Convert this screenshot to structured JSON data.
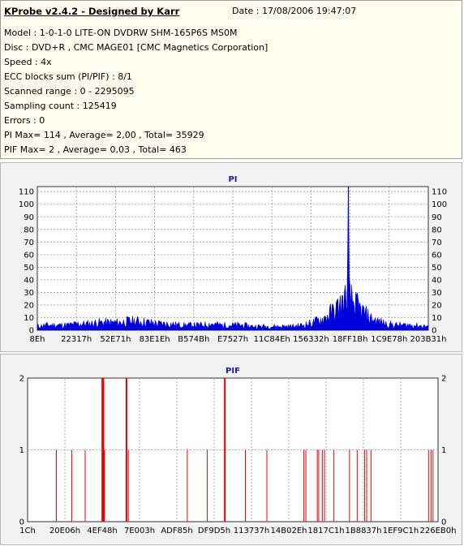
{
  "report": {
    "title": "KProbe v2.4.2 - Designed by Karr",
    "date": "Date : 17/08/2006 19:47:07",
    "lines": [
      "Model : 1-0-1-0 LITE-ON DVDRW SHM-165P6S MS0M",
      "Disc : DVD+R , CMC MAGE01 [CMC Magnetics Corporation]",
      "Speed : 4x",
      "ECC blocks sum (PI/PIF) : 8/1",
      "Scanned range : 0 - 2295095",
      "Sampling count : 125419",
      "Errors : 0",
      "PI Max= 114 , Average= 2,00 , Total= 35929",
      "PIF Max= 2 , Average= 0,03 , Total= 463"
    ]
  },
  "colors": {
    "pi": "#0000dd",
    "pif": "#ee0000",
    "grid": "#9a9a9a",
    "plot_bg": "#ffffff",
    "panel_bg": "#f2f2f2",
    "info_bg": "#fffff0"
  },
  "chart_data": [
    {
      "type": "area",
      "title": "PI",
      "xlabel": "",
      "ylabel": "",
      "ylim": [
        0,
        114
      ],
      "yticks": [
        0,
        10,
        20,
        30,
        40,
        50,
        60,
        70,
        80,
        90,
        100,
        110
      ],
      "xticks": [
        "8Eh",
        "22317h",
        "52E71h",
        "83E1Eh",
        "B574Bh",
        "E7527h",
        "11C84Eh",
        "156332h",
        "18FF1Bh",
        "1C9E78h",
        "203B31h"
      ],
      "xlim": [
        0,
        2295095
      ],
      "grid": true,
      "max_point": {
        "x": 1826000,
        "y": 114
      },
      "profile": [
        [
          0,
          3
        ],
        [
          60000,
          4
        ],
        [
          120000,
          4
        ],
        [
          180000,
          4
        ],
        [
          240000,
          5
        ],
        [
          300000,
          5
        ],
        [
          360000,
          6
        ],
        [
          420000,
          6
        ],
        [
          480000,
          6
        ],
        [
          540000,
          7
        ],
        [
          600000,
          7
        ],
        [
          660000,
          6
        ],
        [
          720000,
          5
        ],
        [
          780000,
          5
        ],
        [
          840000,
          4
        ],
        [
          900000,
          4
        ],
        [
          960000,
          4
        ],
        [
          1020000,
          5
        ],
        [
          1080000,
          4
        ],
        [
          1140000,
          4
        ],
        [
          1200000,
          4
        ],
        [
          1260000,
          3
        ],
        [
          1320000,
          3
        ],
        [
          1380000,
          3
        ],
        [
          1440000,
          3
        ],
        [
          1500000,
          3
        ],
        [
          1560000,
          4
        ],
        [
          1620000,
          6
        ],
        [
          1680000,
          9
        ],
        [
          1720000,
          13
        ],
        [
          1760000,
          17
        ],
        [
          1790000,
          21
        ],
        [
          1810000,
          24
        ],
        [
          1826000,
          26
        ],
        [
          1845000,
          23
        ],
        [
          1880000,
          18
        ],
        [
          1920000,
          13
        ],
        [
          1960000,
          9
        ],
        [
          2000000,
          7
        ],
        [
          2050000,
          5
        ],
        [
          2100000,
          4
        ],
        [
          2150000,
          4
        ],
        [
          2200000,
          4
        ],
        [
          2295095,
          3
        ]
      ]
    },
    {
      "type": "bar",
      "title": "PIF",
      "xlabel": "",
      "ylabel": "",
      "ylim": [
        0,
        2
      ],
      "yticks": [
        0,
        1,
        2
      ],
      "xticks": [
        "1Ch",
        "20E06h",
        "4EF48h",
        "7E003h",
        "ADF85h",
        "DF9D5h",
        "113737h",
        "14B02Eh",
        "1817C1h",
        "1B8837h",
        "1EF9C1h",
        "226EB0h"
      ],
      "xlim": [
        0,
        2295095
      ],
      "grid": true,
      "points": [
        [
          161000,
          1
        ],
        [
          247000,
          1
        ],
        [
          322000,
          1
        ],
        [
          418000,
          2
        ],
        [
          424000,
          2
        ],
        [
          430000,
          1
        ],
        [
          553000,
          2
        ],
        [
          563000,
          1
        ],
        [
          893000,
          1
        ],
        [
          1005000,
          1
        ],
        [
          1103000,
          2
        ],
        [
          1218000,
          1
        ],
        [
          1338000,
          1
        ],
        [
          1545000,
          1
        ],
        [
          1556000,
          1
        ],
        [
          1620000,
          1
        ],
        [
          1628000,
          1
        ],
        [
          1648000,
          1
        ],
        [
          1660000,
          1
        ],
        [
          1713000,
          1
        ],
        [
          1800000,
          1
        ],
        [
          1843000,
          1
        ],
        [
          1885000,
          1
        ],
        [
          1896000,
          1
        ],
        [
          1920000,
          1
        ],
        [
          2242000,
          1
        ],
        [
          2256000,
          1
        ],
        [
          2267000,
          1
        ]
      ]
    }
  ]
}
